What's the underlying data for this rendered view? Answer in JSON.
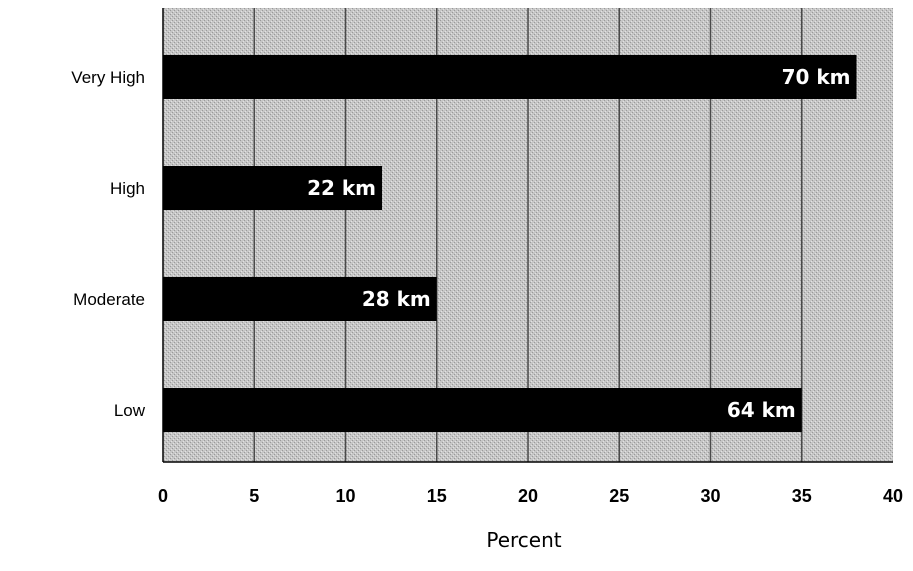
{
  "chart_data": {
    "type": "bar",
    "orientation": "horizontal",
    "categories": [
      "Very High",
      "High",
      "Moderate",
      "Low"
    ],
    "values": [
      38,
      12,
      15,
      35
    ],
    "data_labels": [
      "70 km",
      "22 km",
      "28 km",
      "64 km"
    ],
    "xlabel": "Percent",
    "xlim": [
      0,
      40
    ],
    "xticks": [
      "0",
      "5",
      "10",
      "15",
      "20",
      "25",
      "30",
      "35",
      "40"
    ],
    "grid": "vertical",
    "legend": "none"
  },
  "colors": {
    "bar": "#000000",
    "plot_background": "#c9c9c9",
    "gridline": "#4a4a4a",
    "data_label": "#ffffff"
  }
}
